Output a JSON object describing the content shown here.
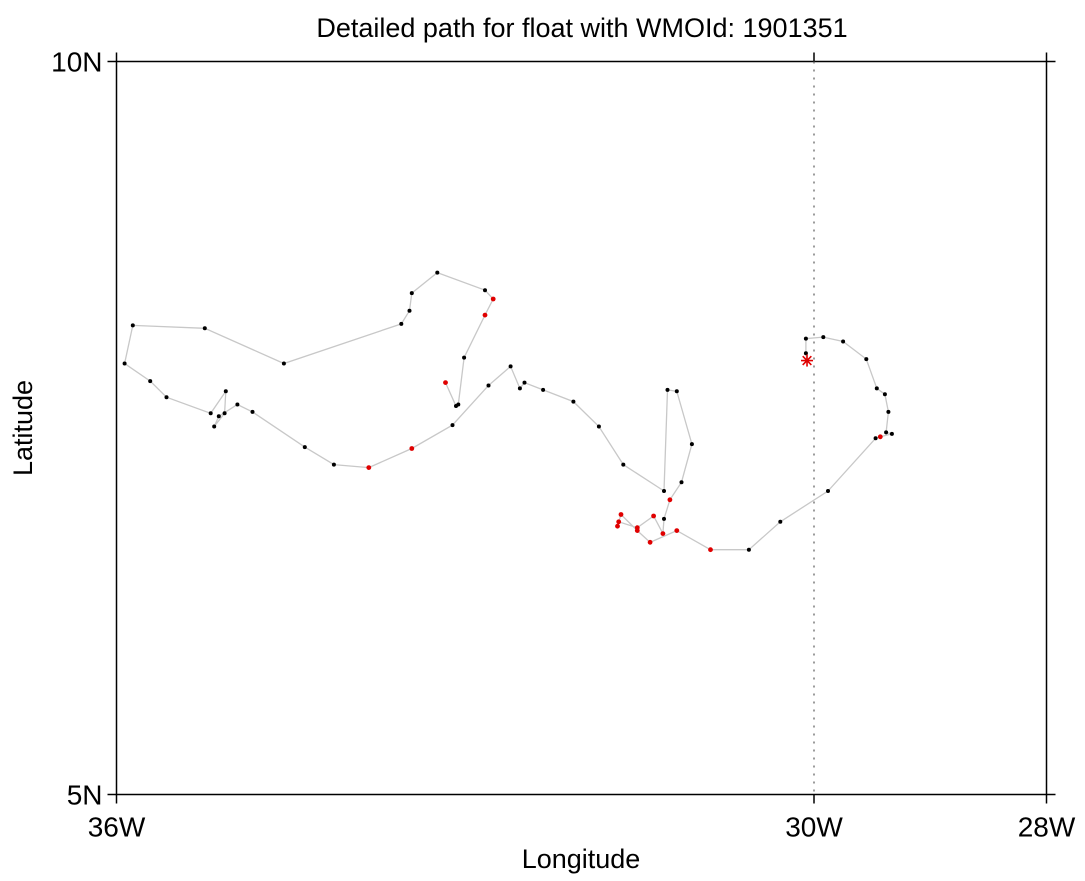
{
  "chart_data": {
    "type": "map-path",
    "title": "Detailed path for float with WMOId: 1901351",
    "xlabel": "Longitude",
    "ylabel": "Latitude",
    "xlim": [
      -36,
      -28
    ],
    "ylim": [
      5,
      10
    ],
    "x_ticks": [
      {
        "value": -36,
        "label": "36W"
      },
      {
        "value": -30,
        "label": "30W"
      },
      {
        "value": -28,
        "label": "28W"
      }
    ],
    "y_ticks": [
      {
        "value": 10,
        "label": "10N"
      },
      {
        "value": 5,
        "label": "5N"
      }
    ],
    "reference_line": {
      "lon": -30,
      "style": "dotted"
    },
    "colors": {
      "path": "#c8c8c8",
      "point": "#000000",
      "highlight": "#e00000"
    },
    "start_marker": {
      "lon": -30.06,
      "lat": 7.96,
      "symbol": "asterisk",
      "color": "#e00000"
    },
    "path": [
      [
        -30.06,
        7.96,
        0
      ],
      [
        -30.07,
        8.01,
        0
      ],
      [
        -30.07,
        8.11,
        0
      ],
      [
        -29.92,
        8.12,
        0
      ],
      [
        -29.75,
        8.09,
        0
      ],
      [
        -29.55,
        7.97,
        0
      ],
      [
        -29.46,
        7.77,
        0
      ],
      [
        -29.39,
        7.73,
        0
      ],
      [
        -29.36,
        7.61,
        0
      ],
      [
        -29.38,
        7.47,
        0
      ],
      [
        -29.33,
        7.46,
        0
      ],
      [
        -29.43,
        7.44,
        1
      ],
      [
        -29.47,
        7.43,
        0
      ],
      [
        -29.88,
        7.07,
        0
      ],
      [
        -30.29,
        6.86,
        0
      ],
      [
        -30.56,
        6.67,
        0
      ],
      [
        -30.89,
        6.67,
        1
      ],
      [
        -31.18,
        6.8,
        1
      ],
      [
        -31.41,
        6.72,
        1
      ],
      [
        -31.52,
        6.8,
        1
      ],
      [
        -31.66,
        6.91,
        1
      ],
      [
        -31.69,
        6.83,
        1
      ],
      [
        -31.68,
        6.86,
        1
      ],
      [
        -31.52,
        6.82,
        1
      ],
      [
        -31.38,
        6.9,
        1
      ],
      [
        -31.3,
        6.78,
        1
      ],
      [
        -31.29,
        6.88,
        0
      ],
      [
        -31.24,
        7.01,
        1
      ],
      [
        -31.14,
        7.13,
        0
      ],
      [
        -31.05,
        7.39,
        0
      ],
      [
        -31.18,
        7.75,
        0
      ],
      [
        -31.26,
        7.76,
        0
      ],
      [
        -31.29,
        7.07,
        0
      ],
      [
        -31.64,
        7.25,
        0
      ],
      [
        -31.85,
        7.51,
        0
      ],
      [
        -32.07,
        7.68,
        0
      ],
      [
        -32.33,
        7.76,
        0
      ],
      [
        -32.49,
        7.81,
        0
      ],
      [
        -32.53,
        7.77,
        0
      ],
      [
        -32.61,
        7.92,
        0
      ],
      [
        -32.8,
        7.79,
        0
      ],
      [
        -33.11,
        7.52,
        0
      ],
      [
        -33.46,
        7.36,
        1
      ],
      [
        -33.83,
        7.23,
        1
      ],
      [
        -34.13,
        7.25,
        0
      ],
      [
        -34.38,
        7.37,
        0
      ],
      [
        -34.83,
        7.61,
        0
      ],
      [
        -34.96,
        7.66,
        0
      ],
      [
        -35.12,
        7.58,
        0
      ],
      [
        -35.16,
        7.51,
        0
      ],
      [
        -35.07,
        7.6,
        0
      ],
      [
        -35.06,
        7.75,
        0
      ],
      [
        -35.19,
        7.6,
        0
      ],
      [
        -35.57,
        7.71,
        0
      ],
      [
        -35.71,
        7.82,
        0
      ],
      [
        -35.93,
        7.94,
        0
      ],
      [
        -35.86,
        8.2,
        0
      ],
      [
        -35.24,
        8.18,
        0
      ],
      [
        -34.56,
        7.94,
        0
      ],
      [
        -33.55,
        8.21,
        0
      ],
      [
        -33.48,
        8.3,
        0
      ],
      [
        -33.46,
        8.42,
        0
      ],
      [
        -33.24,
        8.56,
        0
      ],
      [
        -32.83,
        8.44,
        0
      ],
      [
        -32.76,
        8.38,
        1
      ],
      [
        -32.83,
        8.27,
        1
      ],
      [
        -33.01,
        7.98,
        0
      ],
      [
        -33.06,
        7.66,
        0
      ],
      [
        -33.08,
        7.65,
        0
      ],
      [
        -33.17,
        7.81,
        1
      ]
    ]
  }
}
